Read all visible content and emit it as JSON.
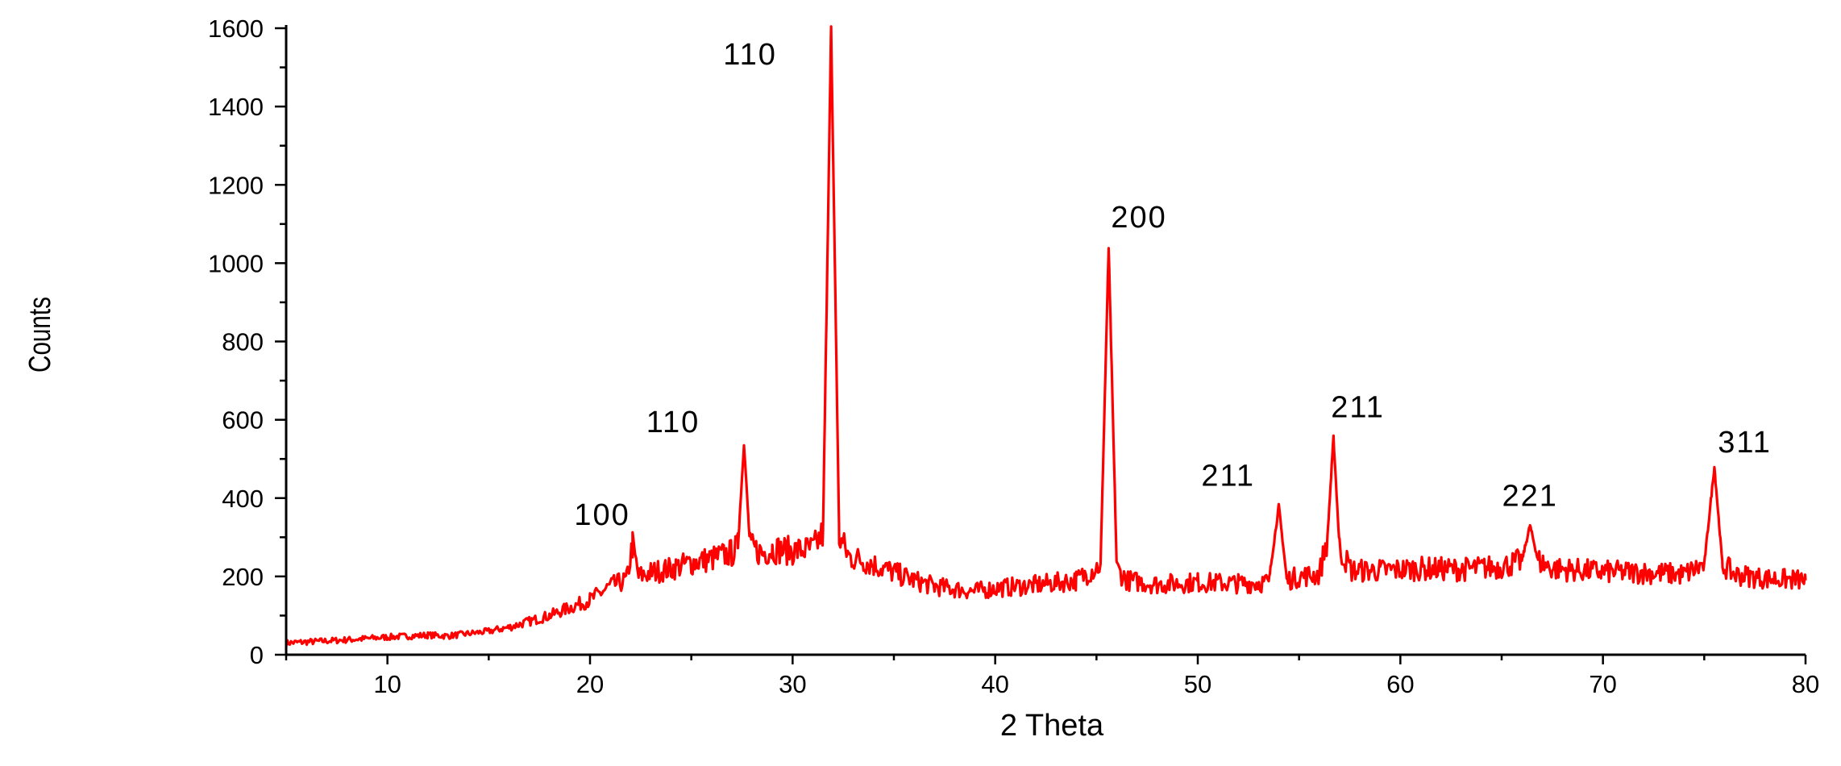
{
  "chart_data": {
    "type": "line",
    "xlabel": "2 Theta",
    "ylabel": "Counts",
    "xlim": [
      5,
      80
    ],
    "ylim": [
      0,
      1600
    ],
    "xticks": [
      10,
      20,
      30,
      40,
      50,
      60,
      70,
      80
    ],
    "yticks": [
      0,
      200,
      400,
      600,
      800,
      1000,
      1200,
      1400,
      1600
    ],
    "grid": false,
    "color": "#ff0000",
    "series": [
      {
        "x": [
          5,
          8,
          10,
          12,
          13,
          15,
          16,
          17,
          18,
          19,
          20,
          21,
          21.8,
          22.1,
          22.4,
          23,
          24,
          25,
          26,
          27,
          27.3,
          27.6,
          27.9,
          28.5,
          29,
          30,
          31,
          31.5,
          31.9,
          32.3,
          32.8,
          33.5,
          34,
          35,
          36,
          37,
          38,
          39,
          40,
          42,
          44,
          45.2,
          45.6,
          46.0,
          46.5,
          48,
          50,
          52,
          53.5,
          54.0,
          54.4,
          55,
          56,
          56.4,
          56.7,
          57.0,
          57.6,
          59,
          61,
          63,
          65,
          66.0,
          66.4,
          66.8,
          67.5,
          70,
          72,
          74,
          75.0,
          75.5,
          75.9,
          76.5,
          78,
          80
        ],
        "y": [
          30,
          38,
          45,
          50,
          48,
          60,
          70,
          85,
          100,
          120,
          140,
          175,
          190,
          280,
          200,
          210,
          220,
          235,
          245,
          260,
          275,
          540,
          275,
          260,
          270,
          265,
          270,
          310,
          1600,
          300,
          250,
          240,
          230,
          210,
          190,
          175,
          168,
          162,
          170,
          178,
          190,
          230,
          1040,
          220,
          190,
          180,
          185,
          182,
          185,
          380,
          190,
          200,
          205,
          300,
          555,
          270,
          215,
          215,
          220,
          218,
          225,
          240,
          330,
          240,
          220,
          212,
          210,
          205,
          230,
          480,
          230,
          205,
          195,
          190
        ]
      }
    ],
    "annotations": [
      {
        "text": "100",
        "x": 22.1,
        "y": 280
      },
      {
        "text": "110",
        "x": 27.6,
        "y": 540
      },
      {
        "text": "110",
        "x": 31.9,
        "y": 1600
      },
      {
        "text": "200",
        "x": 45.6,
        "y": 1040
      },
      {
        "text": "211",
        "x": 54.0,
        "y": 380
      },
      {
        "text": "211",
        "x": 56.7,
        "y": 555
      },
      {
        "text": "221",
        "x": 66.4,
        "y": 330
      },
      {
        "text": "311",
        "x": 75.5,
        "y": 480
      }
    ]
  }
}
